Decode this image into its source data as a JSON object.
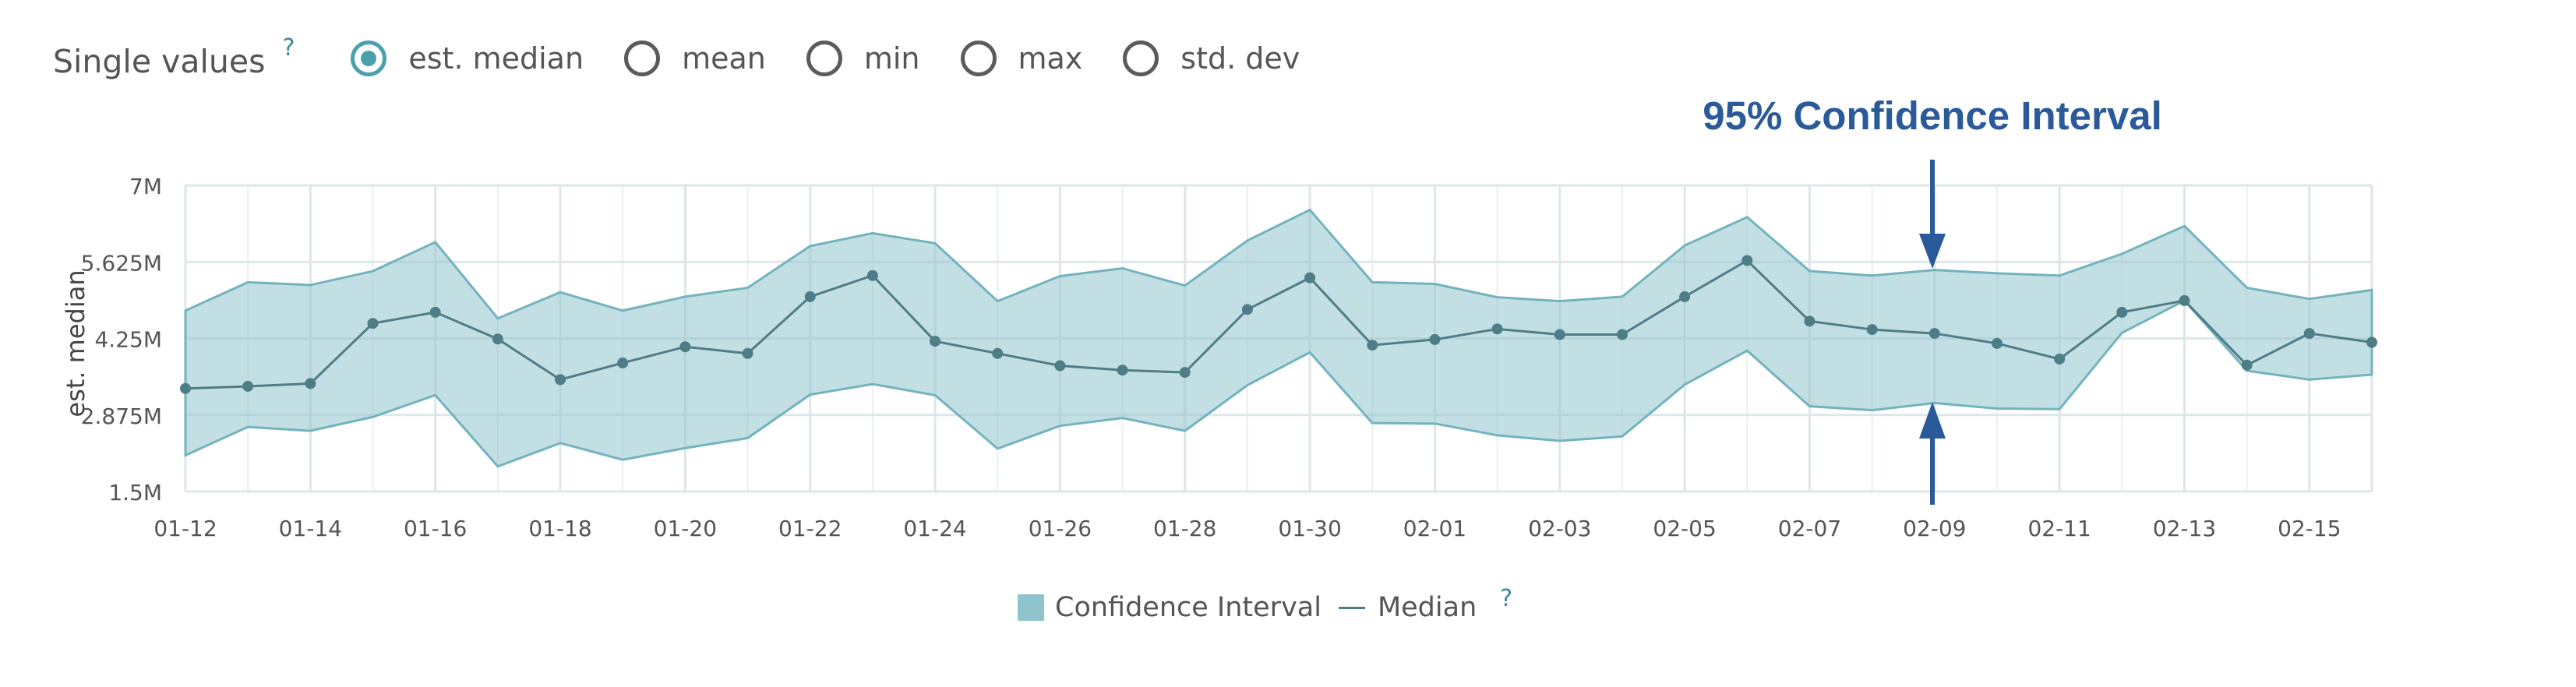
{
  "controls": {
    "title": "Single values",
    "help": "?",
    "options": [
      {
        "label": "est. median",
        "checked": true
      },
      {
        "label": "mean",
        "checked": false
      },
      {
        "label": "min",
        "checked": false
      },
      {
        "label": "max",
        "checked": false
      },
      {
        "label": "std. dev",
        "checked": false
      }
    ]
  },
  "annotation": {
    "text": "95% Confidence Interval",
    "color": "#2b5a9b"
  },
  "legend": {
    "ci_label": "Confidence Interval",
    "median_label": "Median",
    "help": "?"
  },
  "colors": {
    "band": "#8fc4cd",
    "band_edge": "#74b3be",
    "line": "#4f7d87",
    "grid": "#dde7ea",
    "axis_text": "#555555"
  },
  "chart_data": {
    "type": "area",
    "ylabel": "est. median",
    "ylim": [
      1500000,
      7000000
    ],
    "yticks": [
      1500000,
      2875000,
      4250000,
      5625000,
      7000000
    ],
    "ytick_labels": [
      "1.5M",
      "2.875M",
      "4.25M",
      "5.625M",
      "7M"
    ],
    "x": [
      "01-12",
      "01-13",
      "01-14",
      "01-15",
      "01-16",
      "01-17",
      "01-18",
      "01-19",
      "01-20",
      "01-21",
      "01-22",
      "01-23",
      "01-24",
      "01-25",
      "01-26",
      "01-27",
      "01-28",
      "01-29",
      "01-30",
      "01-31",
      "02-01",
      "02-02",
      "02-03",
      "02-04",
      "02-05",
      "02-06",
      "02-07",
      "02-08",
      "02-09",
      "02-10",
      "02-11",
      "02-12",
      "02-13",
      "02-14",
      "02-15",
      "02-16"
    ],
    "xtick_labels": [
      "01-12",
      "01-14",
      "01-16",
      "01-18",
      "01-20",
      "01-22",
      "01-24",
      "01-26",
      "01-28",
      "01-30",
      "02-01",
      "02-03",
      "02-05",
      "02-07",
      "02-09",
      "02-11",
      "02-13",
      "02-15"
    ],
    "series": [
      {
        "name": "Median",
        "values": [
          3350000,
          3390000,
          3440000,
          4520000,
          4720000,
          4240000,
          3510000,
          3810000,
          4100000,
          3980000,
          5000000,
          5380000,
          4200000,
          3980000,
          3760000,
          3680000,
          3640000,
          4770000,
          5340000,
          4130000,
          4230000,
          4420000,
          4320000,
          4320000,
          5000000,
          5650000,
          4560000,
          4410000,
          4340000,
          4160000,
          3880000,
          4720000,
          4930000,
          3770000,
          4340000,
          4180000
        ]
      },
      {
        "name": "Confidence Interval Upper",
        "values": [
          4750000,
          5260000,
          5210000,
          5460000,
          5980000,
          4610000,
          5080000,
          4750000,
          5000000,
          5160000,
          5910000,
          6140000,
          5960000,
          4920000,
          5370000,
          5510000,
          5200000,
          6010000,
          6560000,
          5260000,
          5230000,
          4990000,
          4920000,
          5000000,
          5920000,
          6430000,
          5460000,
          5380000,
          5480000,
          5420000,
          5380000,
          5770000,
          6270000,
          5160000,
          4960000,
          5120000
        ]
      },
      {
        "name": "Confidence Interval Lower",
        "values": [
          2150000,
          2660000,
          2590000,
          2840000,
          3230000,
          1950000,
          2370000,
          2070000,
          2280000,
          2460000,
          3240000,
          3430000,
          3230000,
          2270000,
          2680000,
          2820000,
          2590000,
          3410000,
          4000000,
          2730000,
          2720000,
          2510000,
          2410000,
          2490000,
          3420000,
          4030000,
          3030000,
          2960000,
          3090000,
          2990000,
          2980000,
          4350000,
          4930000,
          3670000,
          3510000,
          3600000
        ]
      }
    ]
  }
}
